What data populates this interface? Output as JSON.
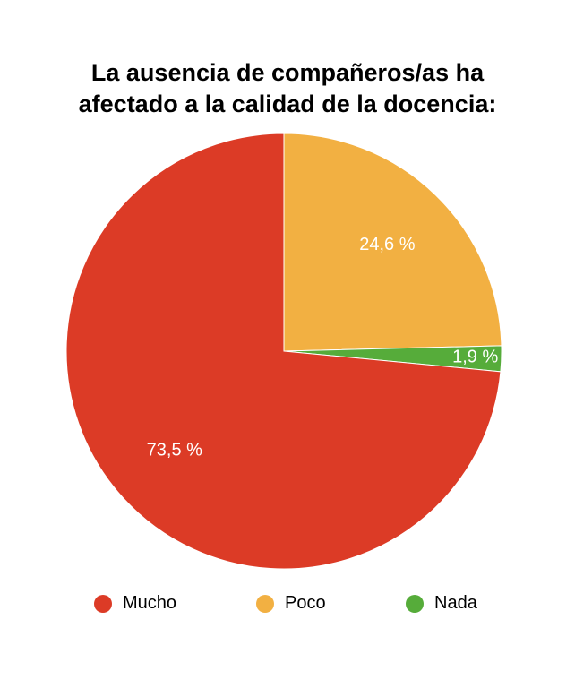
{
  "chart_data": {
    "type": "pie",
    "title_lines": [
      "La ausencia de compañeros/as ha",
      "afectado a la calidad de la docencia:"
    ],
    "slices": [
      {
        "name": "Mucho",
        "value": 73.5,
        "label": "73,5 %",
        "color": "#dc3b26"
      },
      {
        "name": "Poco",
        "value": 24.6,
        "label": "24,6 %",
        "color": "#f2b042"
      },
      {
        "name": "Nada",
        "value": 1.9,
        "label": "1,9 %",
        "color": "#56ac3a"
      }
    ],
    "legend_position": "bottom"
  }
}
